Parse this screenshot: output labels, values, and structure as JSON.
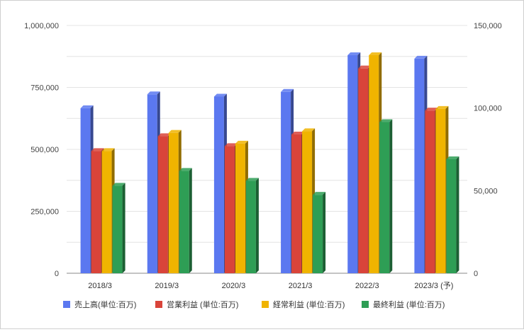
{
  "chart_data": {
    "type": "bar",
    "style": "3d-clustered",
    "categories": [
      "2018/3",
      "2019/3",
      "2020/3",
      "2021/3",
      "2022/3",
      "2023/3 (予)"
    ],
    "series": [
      {
        "name": "売上高(単位:百万)",
        "axis": "left",
        "color": "#5b78f0",
        "values": [
          666000,
          722000,
          713000,
          732000,
          880000,
          866000
        ]
      },
      {
        "name": "営業利益 (単位:百万)",
        "axis": "right",
        "color": "#d9443a",
        "values": [
          74000,
          83000,
          77000,
          84000,
          124000,
          98500
        ]
      },
      {
        "name": "経常利益 (単位:百万)",
        "axis": "right",
        "color": "#f0b400",
        "values": [
          74000,
          85000,
          78500,
          86000,
          132000,
          99500
        ]
      },
      {
        "name": "最終利益 (単位:百万)",
        "axis": "right",
        "color": "#2e9e55",
        "values": [
          53000,
          62000,
          56000,
          47500,
          91500,
          69000
        ]
      }
    ],
    "y_left": {
      "ylim": [
        0,
        1000000
      ],
      "ticks": [
        "0",
        "250,000",
        "500,000",
        "750,000",
        "1,000,000"
      ]
    },
    "y_right": {
      "ylim": [
        0,
        150000
      ],
      "ticks": [
        "0",
        "50,000",
        "100,000",
        "150,000"
      ]
    },
    "grid": true,
    "legend_position": "bottom"
  }
}
